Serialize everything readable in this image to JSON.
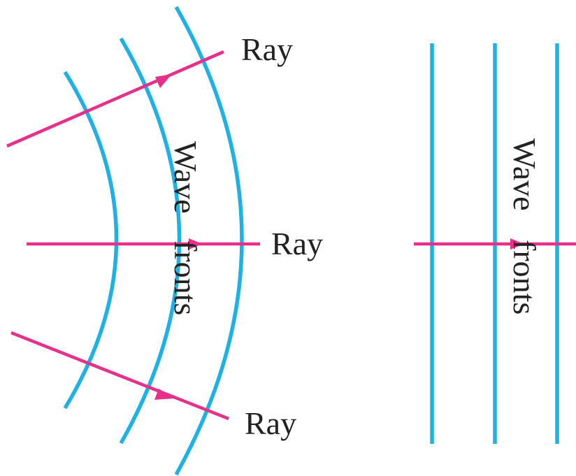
{
  "colors": {
    "wavefront": "#1fb1e6",
    "ray": "#e5318a",
    "text": "#222222",
    "background": "#ffffff"
  },
  "spherical": {
    "ray_label_top": "Ray",
    "ray_label_middle": "Ray",
    "ray_label_bottom": "Ray",
    "wavefront_label_1": "Wave",
    "wavefront_label_2": "fronts"
  },
  "plane": {
    "wavefront_label_1": "Wave",
    "wavefront_label_2": "fronts"
  }
}
